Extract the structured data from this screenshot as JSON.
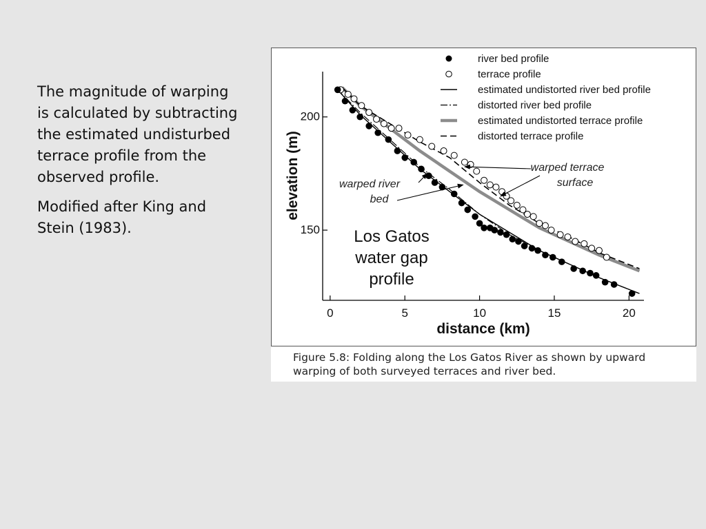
{
  "slide": {
    "paragraph1": "The magnitude of warping is calculated by subtracting the estimated undisturbed terrace profile from the observed profile.",
    "paragraph2": "Modified after King and Stein (1983)."
  },
  "caption": "Figure 5.8: Folding along the Los Gatos River as shown by upward warping of both surveyed terraces and river bed.",
  "chart_data": {
    "type": "scatter",
    "title": "Los Gatos water gap profile",
    "title_lines": [
      "Los Gatos",
      "water gap",
      "profile"
    ],
    "xlabel": "distance (km)",
    "ylabel": "elevation (m)",
    "xlim": [
      -0.5,
      21
    ],
    "ylim": [
      119,
      220
    ],
    "xticks": [
      0,
      5,
      10,
      15,
      20
    ],
    "yticks": [
      150,
      200
    ],
    "grid": false,
    "legend_position": "top-right",
    "annotations": [
      {
        "text_lines": [
          "warped terrace",
          "surface"
        ],
        "targets": [
          [
            9,
            178
          ],
          [
            11.4,
            165
          ]
        ]
      },
      {
        "text_lines": [
          "warped river",
          "bed"
        ],
        "targets": [
          [
            6.5,
            175
          ],
          [
            8.9,
            170
          ]
        ]
      }
    ],
    "series": [
      {
        "name": "river bed profile",
        "style": "filled-circle",
        "color": "#000000",
        "x": [
          0.5,
          1.0,
          1.5,
          2.0,
          2.6,
          3.2,
          3.9,
          4.5,
          5.0,
          5.6,
          6.1,
          6.6,
          7.0,
          7.5,
          8.3,
          8.8,
          9.2,
          9.7,
          10.0,
          10.3,
          10.7,
          11.0,
          11.4,
          11.8,
          12.2,
          12.6,
          13.0,
          13.5,
          13.9,
          14.4,
          14.9,
          15.5,
          16.3,
          16.9,
          17.4,
          17.8,
          18.4,
          19.0,
          20.2
        ],
        "y": [
          212,
          207,
          203,
          200,
          196,
          193,
          190,
          185,
          182,
          180,
          177,
          174,
          171,
          169,
          166,
          162,
          159,
          156,
          153,
          151,
          151,
          150,
          149,
          148,
          146,
          145,
          143,
          142,
          141,
          139,
          138,
          136,
          133,
          132,
          131,
          130,
          127,
          126,
          122
        ]
      },
      {
        "name": "terrace profile",
        "style": "open-circle",
        "color": "#000000",
        "x": [
          0.7,
          1.2,
          1.6,
          2.1,
          2.6,
          3.1,
          3.6,
          4.1,
          4.6,
          5.2,
          6.0,
          6.8,
          7.6,
          8.3,
          9.0,
          9.4,
          9.8,
          10.3,
          10.7,
          11.1,
          11.5,
          11.8,
          12.1,
          12.5,
          12.9,
          13.2,
          13.6,
          14.0,
          14.4,
          14.8,
          15.4,
          15.9,
          16.4,
          17.0,
          17.5,
          18.0,
          18.5
        ],
        "y": [
          212,
          210,
          208,
          205,
          202,
          199,
          197,
          195,
          195,
          192,
          190,
          187,
          185,
          183,
          180,
          179,
          176,
          172,
          170,
          169,
          167,
          165,
          163,
          161,
          159,
          157,
          156,
          153,
          152,
          150,
          148,
          147,
          145,
          144,
          142,
          141,
          138
        ]
      },
      {
        "name": "estimated undistorted river bed profile",
        "style": "line",
        "color": "#000000",
        "x": [
          0.5,
          2,
          4,
          6,
          8,
          10,
          12,
          14,
          16,
          18,
          20.7
        ],
        "y": [
          212,
          201,
          189,
          177,
          167,
          157,
          149,
          141,
          135,
          129,
          122
        ]
      },
      {
        "name": "distorted river bed profile",
        "style": "dash-dot",
        "color": "#000000",
        "x": [
          0.5,
          2,
          4,
          6,
          8,
          10,
          12,
          14,
          16,
          18,
          20.7
        ],
        "y": [
          212,
          202,
          190,
          178,
          168,
          157,
          148,
          141,
          135,
          129,
          122
        ]
      },
      {
        "name": "estimated undistorted terrace profile",
        "style": "thick-line",
        "color": "#8c8c8c",
        "x": [
          0.8,
          2,
          4,
          6,
          8,
          10,
          12,
          14,
          16,
          18,
          20.7
        ],
        "y": [
          213,
          205,
          195,
          185,
          176,
          167,
          159,
          151,
          145,
          139,
          132
        ]
      },
      {
        "name": "distorted terrace profile",
        "style": "dashed",
        "color": "#000000",
        "x": [
          0.8,
          2,
          4,
          6,
          8,
          10,
          12,
          14,
          16,
          18,
          20.7
        ],
        "y": [
          213,
          205,
          197,
          189,
          182,
          171,
          161,
          153,
          147,
          140,
          133
        ]
      }
    ]
  }
}
